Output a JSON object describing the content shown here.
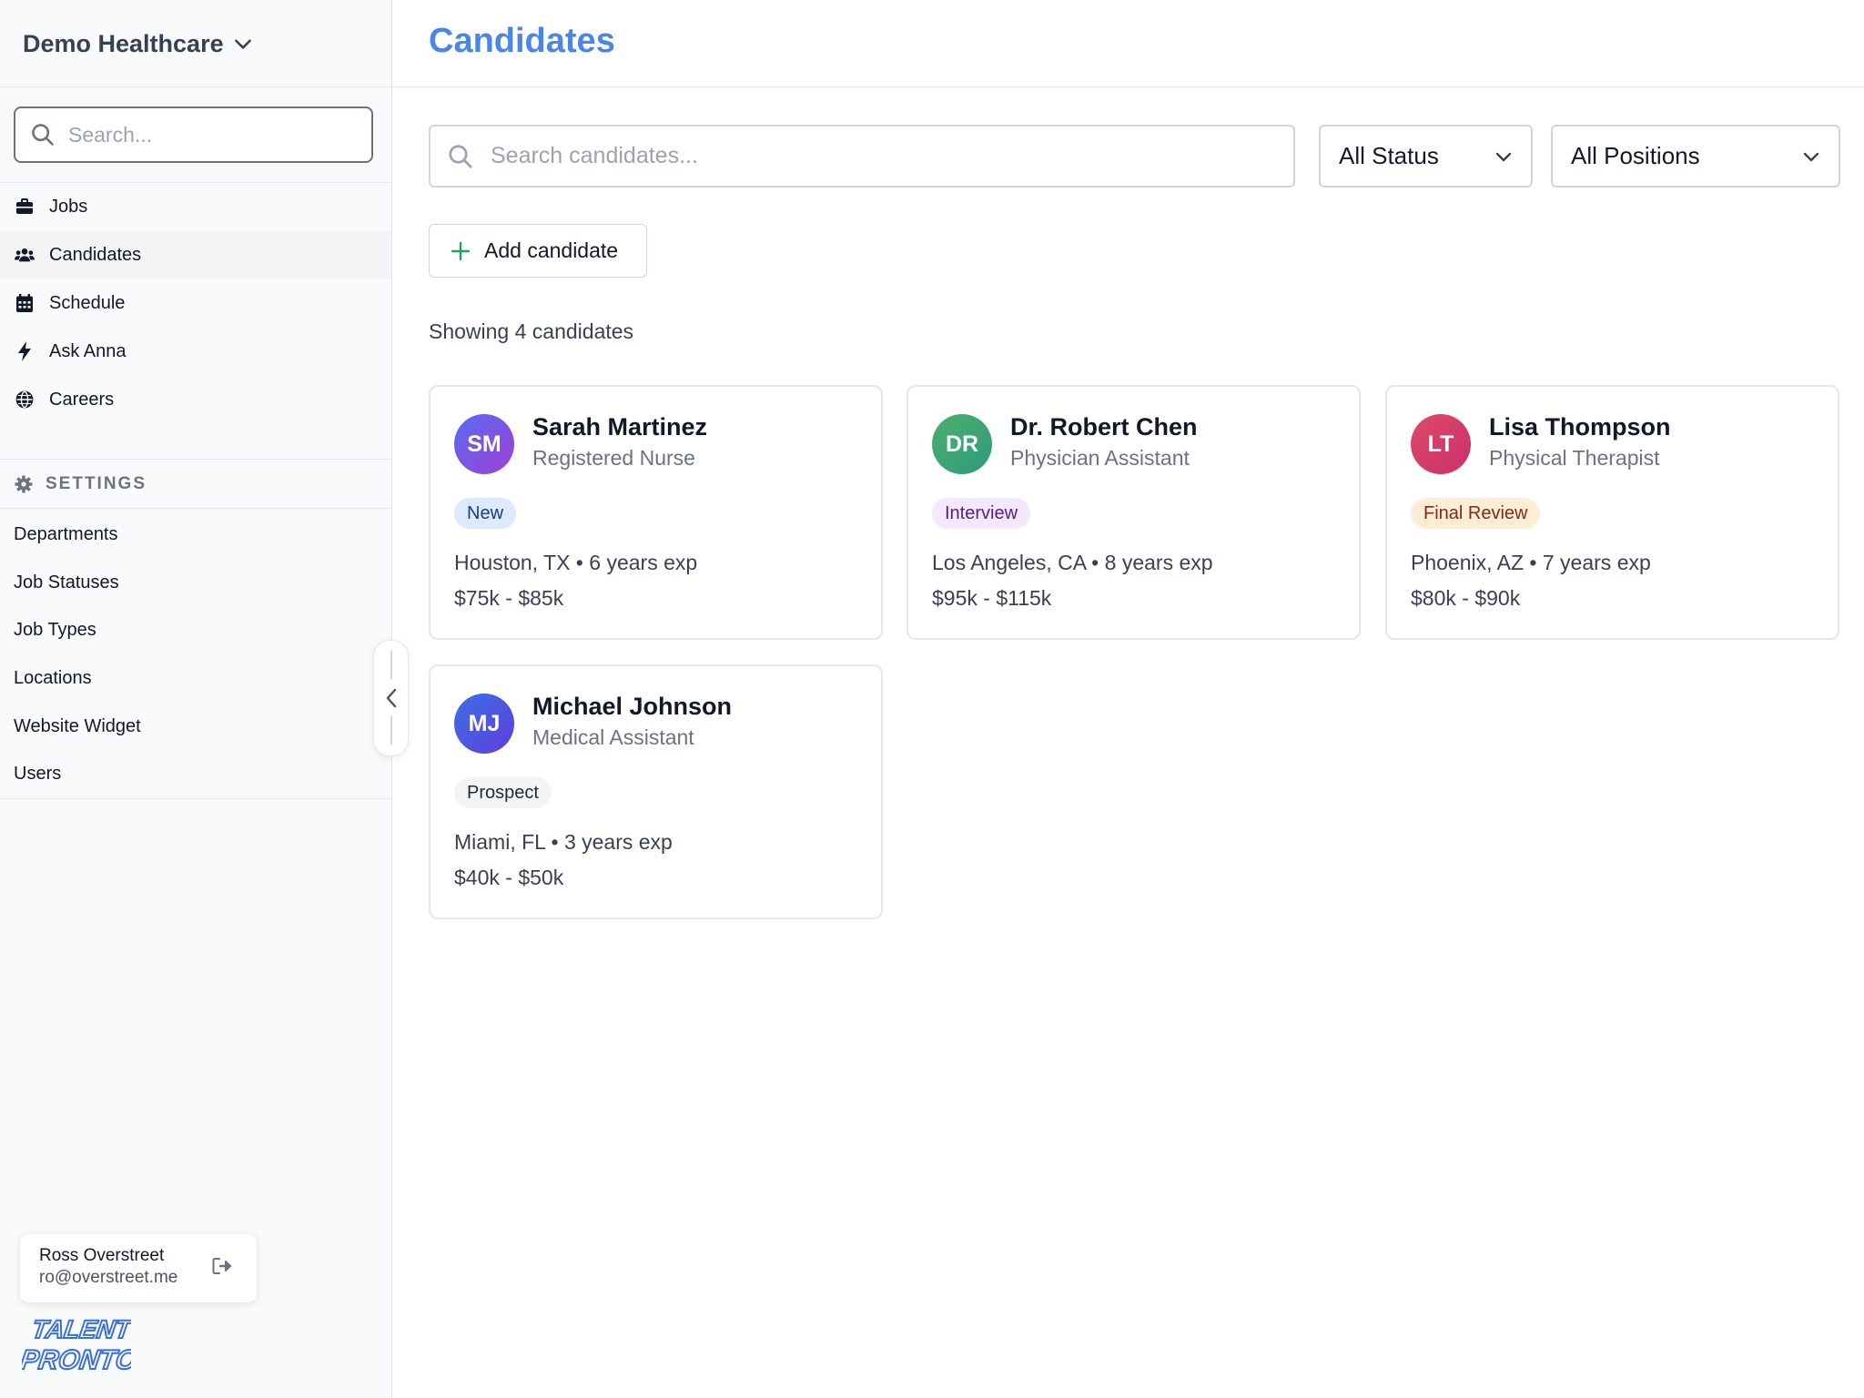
{
  "sidebar": {
    "org_name": "Demo Healthcare",
    "search_placeholder": "Search...",
    "nav": [
      {
        "label": "Jobs",
        "icon": "briefcase-icon"
      },
      {
        "label": "Candidates",
        "icon": "users-icon",
        "active": true
      },
      {
        "label": "Schedule",
        "icon": "calendar-icon"
      },
      {
        "label": "Ask Anna",
        "icon": "bolt-icon"
      },
      {
        "label": "Careers",
        "icon": "globe-icon"
      }
    ],
    "settings_label": "SETTINGS",
    "settings_items": [
      "Departments",
      "Job Statuses",
      "Job Types",
      "Locations",
      "Website Widget",
      "Users"
    ],
    "user": {
      "name": "Ross Overstreet",
      "email": "ro@overstreet.me"
    },
    "logo_text": [
      "TALENT",
      "PRONTO"
    ]
  },
  "main": {
    "title": "Candidates",
    "search_placeholder": "Search candidates...",
    "status_filter": "All Status",
    "position_filter": "All Positions",
    "add_button": "Add candidate",
    "showing": "Showing 4 candidates"
  },
  "candidates": [
    {
      "initials": "SM",
      "name": "Sarah Martinez",
      "role": "Registered Nurse",
      "status": "New",
      "location": "Houston, TX",
      "experience": "6 years exp",
      "salary": "$75k - $85k"
    },
    {
      "initials": "DR",
      "name": "Dr. Robert Chen",
      "role": "Physician Assistant",
      "status": "Interview",
      "location": "Los Angeles, CA",
      "experience": "8 years exp",
      "salary": "$95k - $115k"
    },
    {
      "initials": "LT",
      "name": "Lisa Thompson",
      "role": "Physical Therapist",
      "status": "Final Review",
      "location": "Phoenix, AZ",
      "experience": "7 years exp",
      "salary": "$80k - $90k"
    },
    {
      "initials": "MJ",
      "name": "Michael Johnson",
      "role": "Medical Assistant",
      "status": "Prospect",
      "location": "Miami, FL",
      "experience": "3 years exp",
      "salary": "$40k - $50k"
    }
  ],
  "colors": {
    "accent": "#4a86e8",
    "avatar_sm": "#7c4ddb",
    "avatar_dr": "#3ea36c",
    "avatar_lt": "#d63866",
    "avatar_mj": "#4b58e0",
    "badge_new_bg": "#dbeafe",
    "badge_interview_bg": "#f3e8ff",
    "badge_final_bg": "#ffedd5",
    "badge_prospect_bg": "#f3f4f6"
  }
}
